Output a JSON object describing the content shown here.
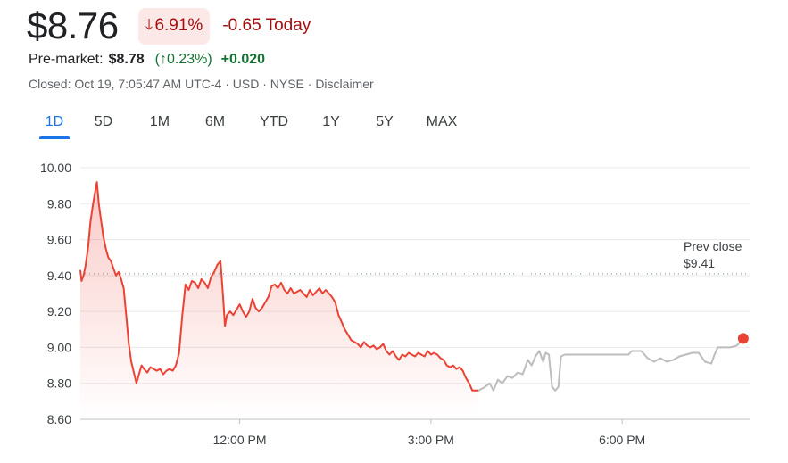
{
  "quote": {
    "price": "$8.76",
    "change_pct": "6.91%",
    "change_today": "-0.65 Today",
    "direction_icon": "arrow-down-icon"
  },
  "premarket": {
    "label": "Pre-market:",
    "price": "$8.78",
    "pct": "0.23%)",
    "pct_open": "(",
    "abs": "+0.020",
    "direction_icon": "arrow-up-icon"
  },
  "status": {
    "text": "Closed: Oct 19, 7:05:47 AM UTC-4 · USD · NYSE · Disclaimer"
  },
  "ranges": [
    "1D",
    "5D",
    "1M",
    "6M",
    "YTD",
    "1Y",
    "5Y",
    "MAX"
  ],
  "active_range": "1D",
  "colors": {
    "down": "#ea4335",
    "down_text": "#a50e0e",
    "up_text": "#137333",
    "afterhours": "#bdbdbd",
    "accent": "#1a73e8"
  },
  "chart_data": {
    "type": "line",
    "y_ticks": [
      "10.00",
      "9.80",
      "9.60",
      "9.40",
      "9.20",
      "9.00",
      "8.80",
      "8.60"
    ],
    "ylim": [
      8.6,
      10.0
    ],
    "x_ticks": [
      {
        "label": "12:00 PM",
        "t": 12.0
      },
      {
        "label": "3:00 PM",
        "t": 15.0
      },
      {
        "label": "6:00 PM",
        "t": 18.0
      }
    ],
    "xlim": [
      9.5,
      20.0
    ],
    "prev_close": {
      "label_line1": "Prev close",
      "label_line2": "$9.41",
      "value": 9.41
    },
    "series": [
      {
        "session": "regular",
        "points": [
          [
            9.5,
            9.43
          ],
          [
            9.52,
            9.37
          ],
          [
            9.55,
            9.4
          ],
          [
            9.58,
            9.45
          ],
          [
            9.62,
            9.55
          ],
          [
            9.66,
            9.7
          ],
          [
            9.7,
            9.8
          ],
          [
            9.73,
            9.86
          ],
          [
            9.76,
            9.92
          ],
          [
            9.79,
            9.8
          ],
          [
            9.82,
            9.72
          ],
          [
            9.86,
            9.62
          ],
          [
            9.9,
            9.55
          ],
          [
            9.94,
            9.5
          ],
          [
            9.98,
            9.48
          ],
          [
            10.02,
            9.44
          ],
          [
            10.06,
            9.4
          ],
          [
            10.1,
            9.42
          ],
          [
            10.14,
            9.38
          ],
          [
            10.18,
            9.33
          ],
          [
            10.22,
            9.18
          ],
          [
            10.26,
            9.02
          ],
          [
            10.3,
            8.92
          ],
          [
            10.34,
            8.86
          ],
          [
            10.38,
            8.8
          ],
          [
            10.42,
            8.85
          ],
          [
            10.46,
            8.9
          ],
          [
            10.5,
            8.88
          ],
          [
            10.55,
            8.86
          ],
          [
            10.6,
            8.89
          ],
          [
            10.65,
            8.88
          ],
          [
            10.7,
            8.87
          ],
          [
            10.75,
            8.88
          ],
          [
            10.8,
            8.85
          ],
          [
            10.85,
            8.87
          ],
          [
            10.9,
            8.88
          ],
          [
            10.95,
            8.87
          ],
          [
            11.0,
            8.9
          ],
          [
            11.05,
            8.97
          ],
          [
            11.1,
            9.18
          ],
          [
            11.15,
            9.35
          ],
          [
            11.2,
            9.32
          ],
          [
            11.25,
            9.37
          ],
          [
            11.3,
            9.36
          ],
          [
            11.35,
            9.33
          ],
          [
            11.4,
            9.38
          ],
          [
            11.45,
            9.36
          ],
          [
            11.5,
            9.33
          ],
          [
            11.55,
            9.39
          ],
          [
            11.6,
            9.42
          ],
          [
            11.65,
            9.46
          ],
          [
            11.7,
            9.48
          ],
          [
            11.74,
            9.28
          ],
          [
            11.77,
            9.12
          ],
          [
            11.8,
            9.18
          ],
          [
            11.85,
            9.2
          ],
          [
            11.9,
            9.18
          ],
          [
            11.95,
            9.21
          ],
          [
            12.0,
            9.24
          ],
          [
            12.05,
            9.2
          ],
          [
            12.1,
            9.17
          ],
          [
            12.15,
            9.2
          ],
          [
            12.2,
            9.27
          ],
          [
            12.25,
            9.22
          ],
          [
            12.3,
            9.2
          ],
          [
            12.35,
            9.22
          ],
          [
            12.4,
            9.25
          ],
          [
            12.45,
            9.28
          ],
          [
            12.5,
            9.34
          ],
          [
            12.55,
            9.35
          ],
          [
            12.6,
            9.33
          ],
          [
            12.65,
            9.36
          ],
          [
            12.7,
            9.32
          ],
          [
            12.75,
            9.3
          ],
          [
            12.8,
            9.33
          ],
          [
            12.85,
            9.3
          ],
          [
            12.9,
            9.31
          ],
          [
            12.95,
            9.32
          ],
          [
            13.0,
            9.3
          ],
          [
            13.05,
            9.28
          ],
          [
            13.1,
            9.32
          ],
          [
            13.15,
            9.29
          ],
          [
            13.2,
            9.31
          ],
          [
            13.25,
            9.33
          ],
          [
            13.3,
            9.3
          ],
          [
            13.35,
            9.32
          ],
          [
            13.4,
            9.3
          ],
          [
            13.45,
            9.28
          ],
          [
            13.5,
            9.25
          ],
          [
            13.55,
            9.18
          ],
          [
            13.6,
            9.14
          ],
          [
            13.65,
            9.1
          ],
          [
            13.7,
            9.07
          ],
          [
            13.75,
            9.04
          ],
          [
            13.8,
            9.03
          ],
          [
            13.85,
            9.02
          ],
          [
            13.9,
            9.0
          ],
          [
            13.95,
            9.03
          ],
          [
            14.0,
            9.01
          ],
          [
            14.05,
            9.0
          ],
          [
            14.1,
            9.01
          ],
          [
            14.15,
            8.99
          ],
          [
            14.2,
            9.0
          ],
          [
            14.25,
            9.02
          ],
          [
            14.3,
            8.98
          ],
          [
            14.35,
            8.96
          ],
          [
            14.4,
            8.98
          ],
          [
            14.45,
            8.95
          ],
          [
            14.5,
            8.93
          ],
          [
            14.55,
            8.96
          ],
          [
            14.6,
            8.95
          ],
          [
            14.65,
            8.97
          ],
          [
            14.7,
            8.96
          ],
          [
            14.75,
            8.95
          ],
          [
            14.8,
            8.97
          ],
          [
            14.85,
            8.96
          ],
          [
            14.9,
            8.95
          ],
          [
            14.95,
            8.98
          ],
          [
            15.0,
            8.96
          ],
          [
            15.05,
            8.97
          ],
          [
            15.1,
            8.96
          ],
          [
            15.15,
            8.94
          ],
          [
            15.2,
            8.93
          ],
          [
            15.25,
            8.9
          ],
          [
            15.3,
            8.89
          ],
          [
            15.35,
            8.9
          ],
          [
            15.4,
            8.88
          ],
          [
            15.45,
            8.89
          ],
          [
            15.5,
            8.87
          ],
          [
            15.55,
            8.83
          ],
          [
            15.6,
            8.8
          ],
          [
            15.65,
            8.76
          ],
          [
            15.7,
            8.76
          ],
          [
            15.75,
            8.76
          ]
        ]
      },
      {
        "session": "after-hours",
        "points": [
          [
            15.75,
            8.76
          ],
          [
            15.85,
            8.78
          ],
          [
            15.92,
            8.8
          ],
          [
            15.98,
            8.76
          ],
          [
            16.05,
            8.82
          ],
          [
            16.12,
            8.8
          ],
          [
            16.2,
            8.84
          ],
          [
            16.28,
            8.83
          ],
          [
            16.36,
            8.86
          ],
          [
            16.44,
            8.85
          ],
          [
            16.52,
            8.93
          ],
          [
            16.58,
            8.9
          ],
          [
            16.64,
            8.95
          ],
          [
            16.7,
            8.98
          ],
          [
            16.76,
            8.92
          ],
          [
            16.8,
            8.97
          ],
          [
            16.85,
            8.96
          ],
          [
            16.9,
            8.78
          ],
          [
            16.95,
            8.76
          ],
          [
            17.0,
            8.78
          ],
          [
            17.04,
            8.95
          ],
          [
            17.1,
            8.96
          ],
          [
            17.3,
            8.96
          ],
          [
            17.5,
            8.96
          ],
          [
            17.7,
            8.96
          ],
          [
            17.9,
            8.96
          ],
          [
            18.1,
            8.96
          ],
          [
            18.15,
            8.98
          ],
          [
            18.3,
            8.98
          ],
          [
            18.4,
            8.94
          ],
          [
            18.5,
            8.92
          ],
          [
            18.6,
            8.94
          ],
          [
            18.7,
            8.92
          ],
          [
            18.8,
            8.93
          ],
          [
            18.9,
            8.95
          ],
          [
            19.0,
            8.96
          ],
          [
            19.1,
            8.97
          ],
          [
            19.2,
            8.97
          ],
          [
            19.3,
            8.92
          ],
          [
            19.4,
            8.91
          ],
          [
            19.45,
            8.96
          ],
          [
            19.5,
            9.0
          ],
          [
            19.6,
            9.0
          ],
          [
            19.7,
            9.0
          ],
          [
            19.8,
            9.01
          ],
          [
            19.9,
            9.05
          ]
        ]
      }
    ],
    "last_point": [
      19.9,
      9.05
    ]
  }
}
